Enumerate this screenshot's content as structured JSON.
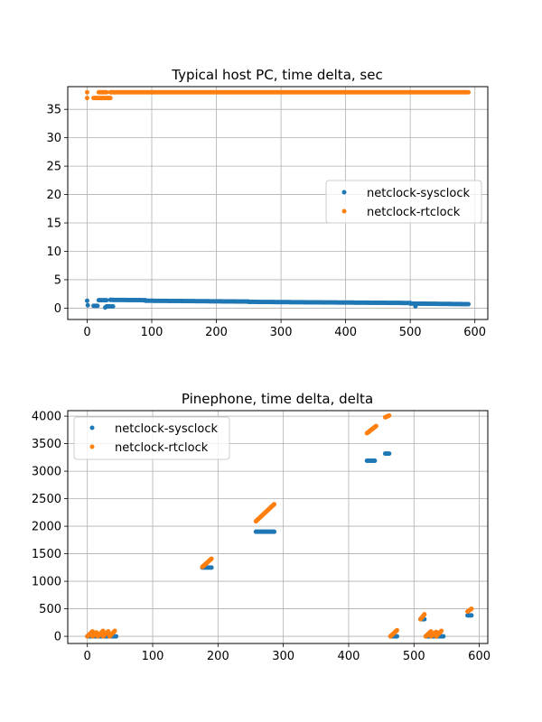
{
  "chart_data": [
    {
      "type": "scatter",
      "title": "Typical host PC, time delta, sec",
      "xlabel": "",
      "ylabel": "",
      "xlim": [
        -30,
        620
      ],
      "ylim": [
        -2,
        39
      ],
      "xticks": [
        0,
        100,
        200,
        300,
        400,
        500,
        600
      ],
      "yticks": [
        0,
        5,
        10,
        15,
        20,
        25,
        30,
        35
      ],
      "grid": true,
      "legend_loc": "center right",
      "series": [
        {
          "name": "netclock-sysclock",
          "color": "#1f77b4",
          "segments": [
            {
              "x0": 0,
              "x1": 1,
              "y0": 1.3,
              "y1": 0.5,
              "step": 1
            },
            {
              "x0": 10,
              "x1": 16,
              "y0": 0.4,
              "y1": 0.4,
              "step": 2
            },
            {
              "x0": 18,
              "x1": 30,
              "y0": 1.4,
              "y1": 1.4,
              "step": 2
            },
            {
              "x0": 30,
              "x1": 40,
              "y0": 0.3,
              "y1": 0.3,
              "step": 2
            },
            {
              "x0": 36,
              "x1": 90,
              "y0": 1.45,
              "y1": 1.4,
              "step": 2
            },
            {
              "x0": 90,
              "x1": 250,
              "y0": 1.3,
              "y1": 1.15,
              "step": 2
            },
            {
              "x0": 250,
              "x1": 500,
              "y0": 1.1,
              "y1": 0.9,
              "step": 2
            },
            {
              "x0": 500,
              "x1": 590,
              "y0": 0.8,
              "y1": 0.7,
              "step": 2
            }
          ],
          "extra_points": [
            [
              508,
              0.3
            ],
            [
              28,
              0.1
            ]
          ]
        },
        {
          "name": "netclock-rtclock",
          "color": "#ff7f0e",
          "segments": [
            {
              "x0": 0,
              "x1": 0,
              "y0": 38,
              "y1": 38,
              "step": 1
            },
            {
              "x0": 0,
              "x1": 0,
              "y0": 37,
              "y1": 37,
              "step": 1
            },
            {
              "x0": 10,
              "x1": 36,
              "y0": 37,
              "y1": 37,
              "step": 2
            },
            {
              "x0": 18,
              "x1": 30,
              "y0": 38,
              "y1": 38,
              "step": 2
            },
            {
              "x0": 36,
              "x1": 590,
              "y0": 38,
              "y1": 38,
              "step": 2
            }
          ],
          "extra_points": []
        }
      ]
    },
    {
      "type": "scatter",
      "title": "Pinephone, time delta, delta",
      "xlabel": "",
      "ylabel": "",
      "xlim": [
        -30,
        613
      ],
      "ylim": [
        -130,
        4100
      ],
      "xticks": [
        0,
        100,
        200,
        300,
        400,
        500,
        600
      ],
      "yticks": [
        0,
        500,
        1000,
        1500,
        2000,
        2500,
        3000,
        3500,
        4000
      ],
      "grid": true,
      "legend_loc": "upper left",
      "series": [
        {
          "name": "netclock-sysclock",
          "color": "#1f77b4",
          "segments": [
            {
              "x0": 0,
              "x1": 44,
              "y0": 0,
              "y1": 0,
              "step": 2
            },
            {
              "x0": 176,
              "x1": 190,
              "y0": 1250,
              "y1": 1250,
              "step": 2
            },
            {
              "x0": 258,
              "x1": 286,
              "y0": 1900,
              "y1": 1900,
              "step": 2
            },
            {
              "x0": 428,
              "x1": 440,
              "y0": 3190,
              "y1": 3190,
              "step": 2
            },
            {
              "x0": 456,
              "x1": 462,
              "y0": 3320,
              "y1": 3320,
              "step": 2
            },
            {
              "x0": 464,
              "x1": 474,
              "y0": 0,
              "y1": 0,
              "step": 2
            },
            {
              "x0": 510,
              "x1": 516,
              "y0": 310,
              "y1": 310,
              "step": 2
            },
            {
              "x0": 518,
              "x1": 545,
              "y0": 0,
              "y1": 0,
              "step": 2
            },
            {
              "x0": 582,
              "x1": 588,
              "y0": 380,
              "y1": 380,
              "step": 2
            }
          ],
          "extra_points": []
        },
        {
          "name": "netclock-rtclock",
          "color": "#ff7f0e",
          "segments": [
            {
              "x0": 0,
              "x1": 8,
              "y0": 0,
              "y1": 90,
              "step": 1
            },
            {
              "x0": 8,
              "x1": 14,
              "y0": 0,
              "y1": 70,
              "step": 1
            },
            {
              "x0": 16,
              "x1": 24,
              "y0": 0,
              "y1": 100,
              "step": 1
            },
            {
              "x0": 24,
              "x1": 32,
              "y0": 0,
              "y1": 90,
              "step": 1
            },
            {
              "x0": 34,
              "x1": 42,
              "y0": 0,
              "y1": 100,
              "step": 1
            },
            {
              "x0": 176,
              "x1": 190,
              "y0": 1260,
              "y1": 1410,
              "step": 1
            },
            {
              "x0": 258,
              "x1": 286,
              "y0": 2090,
              "y1": 2400,
              "step": 1
            },
            {
              "x0": 428,
              "x1": 442,
              "y0": 3690,
              "y1": 3820,
              "step": 1
            },
            {
              "x0": 456,
              "x1": 462,
              "y0": 3980,
              "y1": 4010,
              "step": 1
            },
            {
              "x0": 464,
              "x1": 474,
              "y0": 0,
              "y1": 110,
              "step": 1
            },
            {
              "x0": 510,
              "x1": 516,
              "y0": 310,
              "y1": 400,
              "step": 1
            },
            {
              "x0": 518,
              "x1": 526,
              "y0": 0,
              "y1": 90,
              "step": 1
            },
            {
              "x0": 526,
              "x1": 534,
              "y0": 0,
              "y1": 80,
              "step": 1
            },
            {
              "x0": 534,
              "x1": 542,
              "y0": 0,
              "y1": 100,
              "step": 1
            },
            {
              "x0": 582,
              "x1": 588,
              "y0": 450,
              "y1": 500,
              "step": 1
            }
          ],
          "extra_points": []
        }
      ]
    }
  ]
}
